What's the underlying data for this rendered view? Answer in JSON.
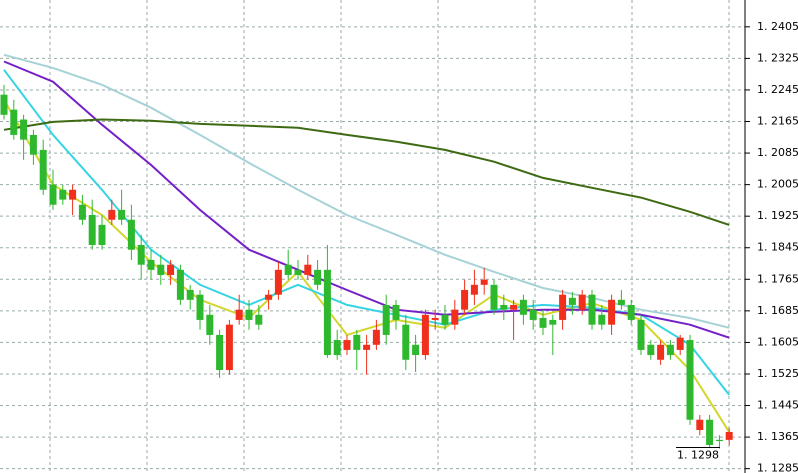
{
  "chart_data": {
    "type": "candlestick",
    "up_color": "#f0301c",
    "down_color": "#2eb82e",
    "grid": true,
    "ylim": [
      1.1274,
      1.2473
    ],
    "yticks": [
      {
        "value": 1.2405,
        "label": "1. 2405"
      },
      {
        "value": 1.2325,
        "label": "1. 2325"
      },
      {
        "value": 1.2245,
        "label": "1. 2245"
      },
      {
        "value": 1.2165,
        "label": "1. 2165"
      },
      {
        "value": 1.2085,
        "label": "1. 2085"
      },
      {
        "value": 1.2005,
        "label": "1. 2005"
      },
      {
        "value": 1.1925,
        "label": "1. 1925"
      },
      {
        "value": 1.1845,
        "label": "1. 1845"
      },
      {
        "value": 1.1765,
        "label": "1. 1765"
      },
      {
        "value": 1.1685,
        "label": "1. 1685"
      },
      {
        "value": 1.1605,
        "label": "1. 1605"
      },
      {
        "value": 1.1525,
        "label": "1. 1525"
      },
      {
        "value": 1.1445,
        "label": "1. 1445"
      },
      {
        "value": 1.1365,
        "label": "1. 1365"
      },
      {
        "value": 1.1285,
        "label": "1. 1285"
      }
    ],
    "price_label": {
      "value": 1.1298,
      "label": "1. 1298"
    },
    "open": [
      1.2233,
      1.2195,
      1.217,
      1.2131,
      1.2093,
      1.2005,
      1.1992,
      1.1967,
      1.1954,
      1.1928,
      1.1903,
      1.1916,
      1.1941,
      1.1916,
      1.1852,
      1.1814,
      1.1802,
      1.1776,
      1.1789,
      1.1738,
      1.1726,
      1.1675,
      1.1624,
      1.1535,
      1.1662,
      1.1688,
      1.1675,
      1.1713,
      1.1726,
      1.1802,
      1.1789,
      1.1776,
      1.1789,
      1.1789,
      1.1611,
      1.1586,
      1.1624,
      1.1586,
      1.1599,
      1.17,
      1.17,
      1.165,
      1.1599,
      1.1573,
      1.1662,
      1.1675,
      1.165,
      1.1688,
      1.1726,
      1.1751,
      1.1751,
      1.17,
      1.1688,
      1.1713,
      1.1688,
      1.1667,
      1.1662,
      1.1662,
      1.1718,
      1.1688,
      1.1726,
      1.1675,
      1.165,
      1.1713,
      1.17,
      1.1662,
      1.1599,
      1.1561,
      1.1599,
      1.1586,
      1.1611,
      1.1383,
      1.1409,
      1.1358,
      1.1358
    ],
    "high": [
      1.2258,
      1.222,
      1.2182,
      1.2144,
      1.2119,
      1.2043,
      1.2005,
      1.2005,
      1.1979,
      1.1967,
      1.1928,
      1.1967,
      1.1992,
      1.1954,
      1.1878,
      1.184,
      1.1827,
      1.1814,
      1.1802,
      1.1751,
      1.1738,
      1.17,
      1.1637,
      1.1662,
      1.1726,
      1.1713,
      1.17,
      1.1738,
      1.1809,
      1.184,
      1.1814,
      1.1827,
      1.1814,
      1.1852,
      1.1637,
      1.1624,
      1.1637,
      1.1624,
      1.1662,
      1.1726,
      1.1713,
      1.1675,
      1.1624,
      1.1688,
      1.1688,
      1.17,
      1.1713,
      1.1764,
      1.1789,
      1.1794,
      1.1764,
      1.1726,
      1.1713,
      1.1726,
      1.1713,
      1.1688,
      1.1675,
      1.1738,
      1.1733,
      1.1738,
      1.1738,
      1.17,
      1.1726,
      1.1738,
      1.1713,
      1.1675,
      1.1611,
      1.1611,
      1.1611,
      1.1624,
      1.1624,
      1.1421,
      1.1421,
      1.137,
      1.1388
    ],
    "low": [
      1.217,
      1.2119,
      1.2068,
      1.2055,
      1.1979,
      1.1941,
      1.1954,
      1.1928,
      1.1903,
      1.184,
      1.184,
      1.1903,
      1.1903,
      1.1814,
      1.1764,
      1.1764,
      1.1751,
      1.1751,
      1.17,
      1.1688,
      1.1637,
      1.1599,
      1.1515,
      1.1523,
      1.165,
      1.1637,
      1.1637,
      1.1688,
      1.1713,
      1.1764,
      1.1764,
      1.1764,
      1.1738,
      1.1566,
      1.1561,
      1.1573,
      1.1535,
      1.1523,
      1.1586,
      1.1599,
      1.1637,
      1.1535,
      1.153,
      1.1561,
      1.1637,
      1.1637,
      1.1637,
      1.1675,
      1.17,
      1.1726,
      1.1675,
      1.1662,
      1.1611,
      1.165,
      1.1637,
      1.1624,
      1.1573,
      1.1637,
      1.1675,
      1.1675,
      1.1637,
      1.1637,
      1.1624,
      1.1688,
      1.165,
      1.1573,
      1.1561,
      1.1548,
      1.1561,
      1.1573,
      1.1396,
      1.137,
      1.1337,
      1.132,
      1.1345
    ],
    "close": [
      1.2182,
      1.2131,
      1.2119,
      1.2081,
      1.1992,
      1.1954,
      1.1967,
      1.1992,
      1.1916,
      1.1852,
      1.1852,
      1.1941,
      1.1916,
      1.184,
      1.1802,
      1.1789,
      1.1776,
      1.1802,
      1.1713,
      1.1713,
      1.1662,
      1.1624,
      1.1535,
      1.165,
      1.1688,
      1.1662,
      1.165,
      1.1726,
      1.1789,
      1.1776,
      1.1776,
      1.1802,
      1.1751,
      1.1573,
      1.1573,
      1.1611,
      1.1586,
      1.1599,
      1.1637,
      1.1624,
      1.1662,
      1.1561,
      1.1573,
      1.1675,
      1.1667,
      1.165,
      1.1688,
      1.1738,
      1.1751,
      1.1764,
      1.1688,
      1.1688,
      1.17,
      1.1675,
      1.1662,
      1.1642,
      1.165,
      1.1726,
      1.17,
      1.1726,
      1.165,
      1.165,
      1.1713,
      1.17,
      1.1662,
      1.1586,
      1.1573,
      1.1599,
      1.1573,
      1.1617,
      1.1409,
      1.1409,
      1.1345,
      1.1355,
      1.1378
    ],
    "lines": [
      {
        "color": "#d2d62a",
        "x": [
          0,
          5,
          10,
          15,
          20,
          25,
          30,
          35,
          40,
          45,
          50,
          55,
          60,
          65,
          70,
          74
        ],
        "values": [
          1.222,
          1.2005,
          1.1928,
          1.1809,
          1.1713,
          1.1667,
          1.1784,
          1.1624,
          1.1662,
          1.1642,
          1.1726,
          1.1675,
          1.1705,
          1.1662,
          1.1535,
          1.1378
        ]
      },
      {
        "color": "#35d4e4",
        "x": [
          0,
          5,
          10,
          15,
          20,
          25,
          30,
          35,
          40,
          45,
          50,
          55,
          60,
          65,
          70,
          74
        ],
        "values": [
          1.2296,
          1.2131,
          1.1992,
          1.184,
          1.1751,
          1.17,
          1.1751,
          1.17,
          1.1675,
          1.165,
          1.1688,
          1.17,
          1.1693,
          1.1675,
          1.1599,
          1.1472
        ]
      },
      {
        "color": "#7420c6",
        "x": [
          0,
          5,
          10,
          15,
          20,
          25,
          30,
          35,
          40,
          45,
          50,
          55,
          60,
          65,
          70,
          74
        ],
        "values": [
          1.2317,
          1.2266,
          1.2157,
          1.2055,
          1.1941,
          1.184,
          1.1789,
          1.1738,
          1.1688,
          1.1675,
          1.1683,
          1.1688,
          1.1688,
          1.1675,
          1.165,
          1.1617
        ]
      },
      {
        "color": "#a6d2d8",
        "x": [
          0,
          5,
          10,
          15,
          20,
          25,
          30,
          35,
          40,
          45,
          50,
          55,
          60,
          65,
          70,
          74
        ],
        "values": [
          1.2334,
          1.2301,
          1.2258,
          1.22,
          1.2131,
          1.206,
          1.1992,
          1.1928,
          1.1878,
          1.1827,
          1.1784,
          1.1743,
          1.1718,
          1.1688,
          1.1667,
          1.1642
        ]
      },
      {
        "color": "#3d6a12",
        "x": [
          0,
          5,
          10,
          15,
          20,
          25,
          30,
          35,
          40,
          45,
          50,
          55,
          60,
          65,
          70,
          74
        ],
        "values": [
          1.2144,
          1.2164,
          1.217,
          1.2167,
          1.2159,
          1.2154,
          1.2149,
          1.2131,
          1.2114,
          1.2093,
          1.2063,
          1.2022,
          1.1997,
          1.1972,
          1.1936,
          1.1903
        ]
      }
    ]
  }
}
